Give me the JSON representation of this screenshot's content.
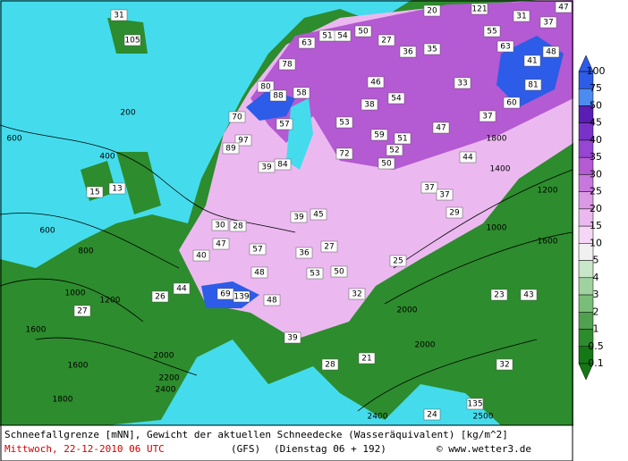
{
  "map": {
    "labels": [
      "31",
      "105",
      "20",
      "121",
      "31",
      "47",
      "63",
      "51",
      "54",
      "50",
      "27",
      "36",
      "35",
      "55",
      "63",
      "37",
      "48",
      "78",
      "80",
      "88",
      "58",
      "46",
      "54",
      "41",
      "81",
      "33",
      "70",
      "57",
      "53",
      "38",
      "47",
      "37",
      "60",
      "97",
      "89",
      "59",
      "51",
      "52",
      "50",
      "72",
      "84",
      "39",
      "44",
      "37",
      "37",
      "29",
      "39",
      "45",
      "30",
      "28",
      "47",
      "57",
      "27",
      "36",
      "40",
      "48",
      "53",
      "50",
      "25",
      "44",
      "69",
      "139",
      "48",
      "32",
      "26",
      "27",
      "23",
      "43",
      "39",
      "21",
      "28",
      "32",
      "135",
      "24",
      "13",
      "15"
    ],
    "contours": [
      "600",
      "400",
      "200",
      "600",
      "800",
      "1000",
      "1200",
      "1600",
      "1600",
      "1800",
      "2000",
      "2200",
      "2400",
      "2000",
      "2000",
      "1800",
      "1400",
      "1200",
      "1000",
      "1600",
      "2400",
      "2500"
    ]
  },
  "legend": {
    "labels": [
      "100",
      "75",
      "50",
      "45",
      "40",
      "35",
      "30",
      "25",
      "20",
      "15",
      "10",
      "5",
      "4",
      "3",
      "2",
      "1",
      "0.5",
      "0.1"
    ],
    "colors": [
      "#2c5ce8",
      "#4c8cf0",
      "#5a1eb4",
      "#7832c8",
      "#9646d2",
      "#b45ad2",
      "#c878dc",
      "#dc9ae6",
      "#ebb9f0",
      "#f5d7f5",
      "#f0f0f0",
      "#c8e6c8",
      "#a0d2a0",
      "#78be78",
      "#50a050",
      "#2d8c2d",
      "#147814"
    ]
  },
  "footer": {
    "line1": "Schneefallgrenze [mNN], Gewicht der aktuellen Schneedecke (Wasseräquivalent) [kg/m^2]",
    "date": "Mittwoch, 22-12-2010  06 UTC",
    "model": "(GFS)",
    "run": "(Dienstag 06 + 192)",
    "credit": "© www.wetter3.de"
  }
}
